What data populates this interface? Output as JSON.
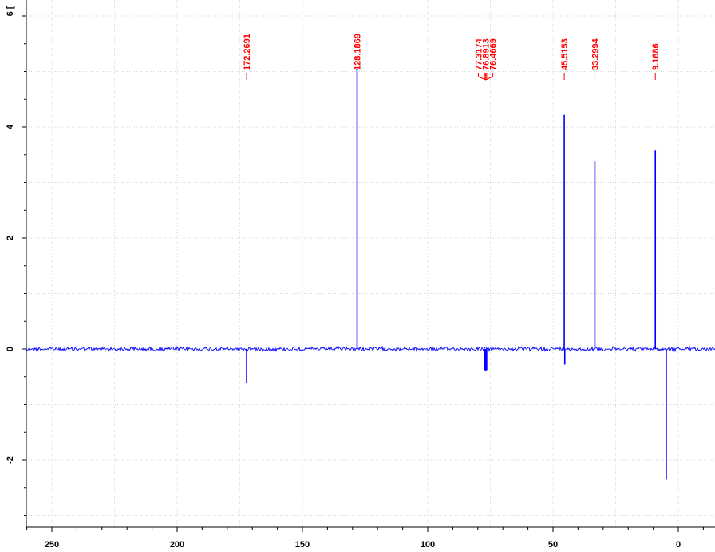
{
  "chart_data": {
    "type": "line",
    "title": "",
    "xlabel": "",
    "ylabel": "",
    "y_axis_partial_label": "6 [",
    "x_reversed": true,
    "xlim": [
      262,
      -15
    ],
    "ylim": [
      -3.2,
      6.3
    ],
    "grid": true,
    "x_ticks": [
      250,
      200,
      150,
      100,
      50,
      0
    ],
    "x_tick_labels": [
      "250",
      "200",
      "150",
      "100",
      "50",
      "0"
    ],
    "y_ticks": [
      4,
      2,
      0,
      -2
    ],
    "y_tick_labels": [
      "4",
      "2",
      "0",
      "-2"
    ],
    "line_color": "#0000ff",
    "label_color": "#ff0000",
    "peak_labels": [
      {
        "text": "172.2691",
        "value": 172.2691
      },
      {
        "text": "128.1869",
        "value": 128.1869
      },
      {
        "text": "77.3174",
        "value": 77.3174
      },
      {
        "text": "76.8913",
        "value": 76.8913
      },
      {
        "text": "76.4669",
        "value": 76.4669
      },
      {
        "text": "45.5153",
        "value": 45.5153
      },
      {
        "text": "33.2994",
        "value": 33.2994
      },
      {
        "text": "9.1686",
        "value": 9.1686
      }
    ],
    "peaks": [
      {
        "x": 172.2691,
        "y": -0.62
      },
      {
        "x": 128.1869,
        "y": 5.05
      },
      {
        "x": 77.3174,
        "y": -0.38
      },
      {
        "x": 76.8913,
        "y": -0.4
      },
      {
        "x": 76.4669,
        "y": -0.38
      },
      {
        "x": 45.5153,
        "y": 4.22
      },
      {
        "x": 45.3,
        "y": -0.28
      },
      {
        "x": 33.2994,
        "y": 3.38
      },
      {
        "x": 9.1686,
        "y": 3.58
      },
      {
        "x": 4.8,
        "y": -2.35
      }
    ]
  }
}
